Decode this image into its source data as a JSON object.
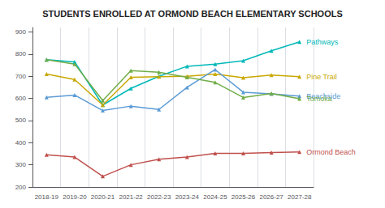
{
  "chart_data": {
    "type": "line",
    "title": "STUDENTS ENROLLED AT ORMOND BEACH ELEMENTARY SCHOOLS",
    "categories": [
      "2018-19",
      "2019-20",
      "2020-21",
      "2021-22",
      "2022-23",
      "2023-24",
      "2024-25",
      "2025-26",
      "2026-27",
      "2027-28"
    ],
    "series": [
      {
        "name": "Pathways",
        "color": "#00b8b8",
        "values": [
          775,
          765,
          570,
          645,
          700,
          745,
          755,
          770,
          815,
          855
        ]
      },
      {
        "name": "Pine Trail",
        "color": "#c8a800",
        "values": [
          710,
          685,
          570,
          695,
          698,
          700,
          710,
          693,
          705,
          698
        ]
      },
      {
        "name": "Beachside",
        "color": "#5b9bd5",
        "values": [
          605,
          615,
          545,
          565,
          550,
          650,
          730,
          628,
          620,
          610
        ]
      },
      {
        "name": "Tomoka",
        "color": "#70ad47",
        "values": [
          775,
          755,
          590,
          725,
          718,
          695,
          672,
          604,
          622,
          598
        ]
      },
      {
        "name": "Ormond Beach",
        "color": "#c0504d",
        "values": [
          345,
          335,
          248,
          300,
          325,
          335,
          352,
          352,
          355,
          358
        ]
      }
    ],
    "ylim": [
      200,
      920
    ],
    "yticks": [
      200,
      300,
      400,
      500,
      600,
      700,
      800,
      900
    ],
    "grid": true,
    "marker": "triangle"
  }
}
